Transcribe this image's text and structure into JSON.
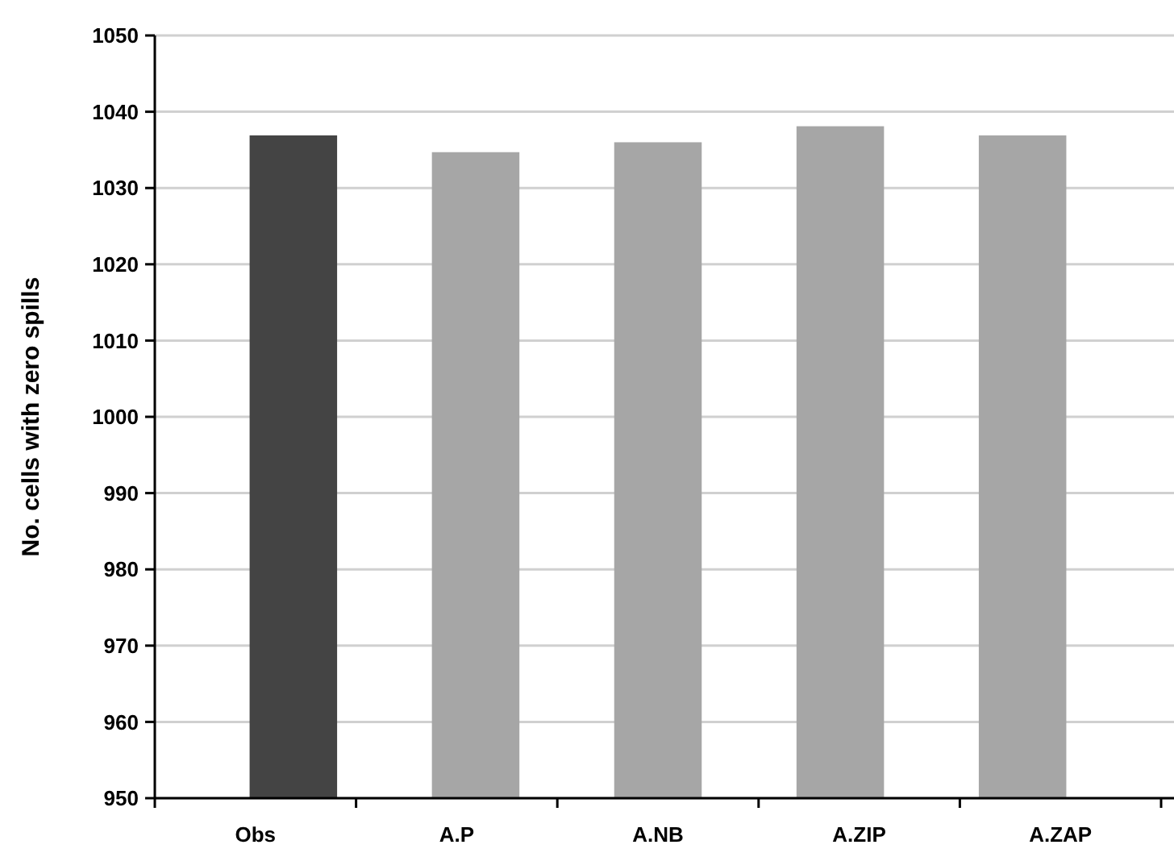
{
  "chart_data": {
    "type": "bar",
    "ylabel": "No. cells with zero spills",
    "categories": [
      "Obs",
      "A.P",
      "A.NB",
      "A.ZIP",
      "A.ZAP"
    ],
    "values": [
      1036.9,
      1034.7,
      1036.0,
      1038.1,
      1036.9
    ],
    "colors": [
      "#444444",
      "#a6a6a6",
      "#a6a6a6",
      "#a6a6a6",
      "#a6a6a6"
    ],
    "ylim": [
      950,
      1050
    ],
    "yticks": [
      950,
      960,
      970,
      980,
      990,
      1000,
      1010,
      1020,
      1030,
      1040,
      1050
    ],
    "grid": "y"
  }
}
